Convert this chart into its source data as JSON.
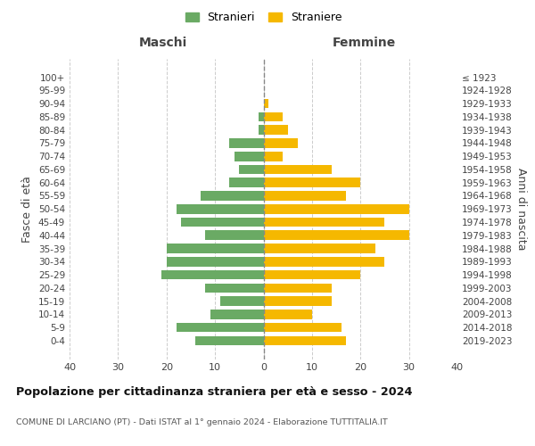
{
  "age_groups": [
    "100+",
    "95-99",
    "90-94",
    "85-89",
    "80-84",
    "75-79",
    "70-74",
    "65-69",
    "60-64",
    "55-59",
    "50-54",
    "45-49",
    "40-44",
    "35-39",
    "30-34",
    "25-29",
    "20-24",
    "15-19",
    "10-14",
    "5-9",
    "0-4"
  ],
  "birth_years": [
    "≤ 1923",
    "1924-1928",
    "1929-1933",
    "1934-1938",
    "1939-1943",
    "1944-1948",
    "1949-1953",
    "1954-1958",
    "1959-1963",
    "1964-1968",
    "1969-1973",
    "1974-1978",
    "1979-1983",
    "1984-1988",
    "1989-1993",
    "1994-1998",
    "1999-2003",
    "2004-2008",
    "2009-2013",
    "2014-2018",
    "2019-2023"
  ],
  "maschi": [
    0,
    0,
    0,
    1,
    1,
    7,
    6,
    5,
    7,
    13,
    18,
    17,
    12,
    20,
    20,
    21,
    12,
    9,
    11,
    18,
    14
  ],
  "femmine": [
    0,
    0,
    1,
    4,
    5,
    7,
    4,
    14,
    20,
    17,
    30,
    25,
    30,
    23,
    25,
    20,
    14,
    14,
    10,
    16,
    17
  ],
  "maschi_color": "#6aaa64",
  "femmine_color": "#f5b800",
  "grid_color": "#cccccc",
  "center_line_color": "#888888",
  "title": "Popolazione per cittadinanza straniera per età e sesso - 2024",
  "subtitle": "COMUNE DI LARCIANO (PT) - Dati ISTAT al 1° gennaio 2024 - Elaborazione TUTTITALIA.IT",
  "ylabel_left": "Fasce di età",
  "ylabel_right": "Anni di nascita",
  "header_left": "Maschi",
  "header_right": "Femmine",
  "legend_stranieri": "Stranieri",
  "legend_straniere": "Straniere",
  "xlim": 40,
  "bar_height": 0.72
}
